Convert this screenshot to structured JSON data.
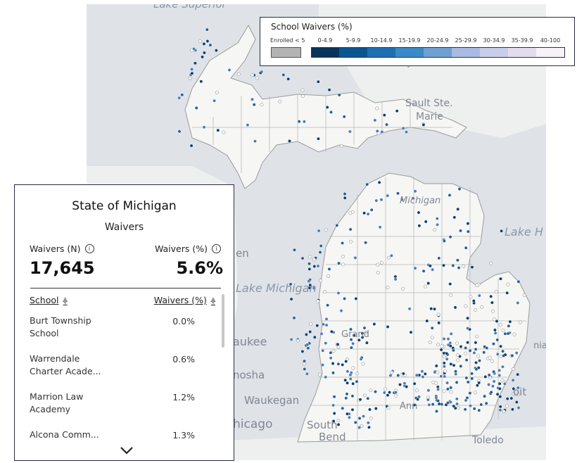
{
  "map": {
    "water_labels": [
      "Lake Superior",
      "Lake Michigan",
      "Lake H"
    ],
    "city_labels": [
      "Sault Ste.",
      "Marie",
      "Michigan",
      "en",
      "aukee",
      "nosha",
      "Waukegan",
      "hicago",
      "South",
      "Bend",
      "Toledo",
      "Pennsylvania",
      "Grand",
      "Ann",
      "nia",
      "oit"
    ],
    "dot_colors": [
      "#0b3f6e",
      "#245f96",
      "#4a7bb4",
      "#ffffff"
    ]
  },
  "legend": {
    "title": "School Waivers (%)",
    "enrolled_label": "Enrolled < 5",
    "enrolled_color": "#b3b3b3",
    "bins": [
      {
        "label": "0-4.9",
        "color": "#08345c"
      },
      {
        "label": "5-9.9",
        "color": "#0a5590"
      },
      {
        "label": "10-14.9",
        "color": "#1e6fb2"
      },
      {
        "label": "15-19.9",
        "color": "#3b89c6"
      },
      {
        "label": "20-24.9",
        "color": "#6ea0d2"
      },
      {
        "label": "25-29.9",
        "color": "#a9bbe2"
      },
      {
        "label": "30-34.9",
        "color": "#c8cde9"
      },
      {
        "label": "35-39.9",
        "color": "#e1ddef"
      },
      {
        "label": "40-100",
        "color": "#f7f1f8"
      }
    ]
  },
  "panel": {
    "title": "State of Michigan",
    "subtitle": "Waivers",
    "waivers_n_label": "Waivers (N)",
    "waivers_pct_label": "Waivers (%)",
    "waivers_n_value": "17,645",
    "waivers_pct_value": "5.6%",
    "col_school": "School",
    "col_waivers_pct": "Waivers (%)",
    "rows": [
      {
        "school": "Burt Township School",
        "pct": "0.0%"
      },
      {
        "school": "Warrendale Charter Acade...",
        "pct": "0.6%"
      },
      {
        "school": "Marrion Law Academy",
        "pct": "1.2%"
      },
      {
        "school": "Alcona Comm...",
        "pct": "1.3%"
      }
    ]
  }
}
